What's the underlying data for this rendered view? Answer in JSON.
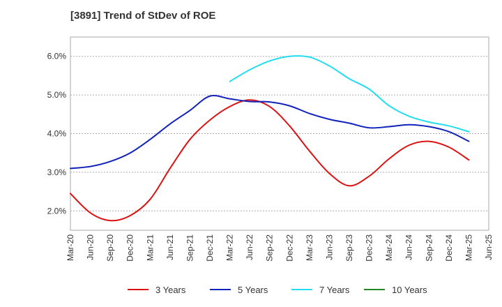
{
  "chart_data": {
    "type": "line",
    "title": "[3891]  Trend of StDev of ROE",
    "xlabel": "",
    "ylabel": "",
    "ylim": [
      1.5,
      6.5
    ],
    "y_ticks": [
      2.0,
      3.0,
      4.0,
      5.0,
      6.0
    ],
    "y_tick_labels": [
      "2.0%",
      "3.0%",
      "4.0%",
      "5.0%",
      "6.0%"
    ],
    "x_tick_labels": [
      "Mar-20",
      "Jun-20",
      "Sep-20",
      "Dec-20",
      "Mar-21",
      "Jun-21",
      "Sep-21",
      "Dec-21",
      "Mar-22",
      "Jun-22",
      "Sep-22",
      "Dec-22",
      "Mar-23",
      "Jun-23",
      "Sep-23",
      "Dec-23",
      "Mar-24",
      "Jun-24",
      "Sep-24",
      "Dec-24",
      "Mar-25",
      "Jun-25"
    ],
    "grid": "horizontal dashed",
    "legend_position": "bottom",
    "series": [
      {
        "name": "3 Years",
        "color": "#dd1111",
        "x": [
          "Mar-20",
          "Jun-20",
          "Sep-20",
          "Dec-20",
          "Mar-21",
          "Jun-21",
          "Sep-21",
          "Dec-21",
          "Mar-22",
          "Jun-22",
          "Sep-22",
          "Dec-22",
          "Mar-23",
          "Jun-23",
          "Sep-23",
          "Dec-23",
          "Mar-24",
          "Jun-24",
          "Sep-24",
          "Dec-24",
          "Mar-25"
        ],
        "values": [
          2.45,
          1.95,
          1.75,
          1.88,
          2.3,
          3.1,
          3.85,
          4.35,
          4.7,
          4.87,
          4.7,
          4.2,
          3.55,
          2.97,
          2.65,
          2.9,
          3.35,
          3.7,
          3.8,
          3.65,
          3.32
        ]
      },
      {
        "name": "5 Years",
        "color": "#1122bb",
        "x": [
          "Mar-20",
          "Jun-20",
          "Sep-20",
          "Dec-20",
          "Mar-21",
          "Jun-21",
          "Sep-21",
          "Dec-21",
          "Mar-22",
          "Jun-22",
          "Sep-22",
          "Dec-22",
          "Mar-23",
          "Jun-23",
          "Sep-23",
          "Dec-23",
          "Mar-24",
          "Jun-24",
          "Sep-24",
          "Dec-24",
          "Mar-25"
        ],
        "values": [
          3.1,
          3.15,
          3.28,
          3.5,
          3.85,
          4.25,
          4.6,
          4.97,
          4.9,
          4.83,
          4.82,
          4.72,
          4.52,
          4.37,
          4.27,
          4.15,
          4.18,
          4.23,
          4.18,
          4.05,
          3.8
        ]
      },
      {
        "name": "7 Years",
        "color": "#22ddee",
        "x": [
          "Mar-22",
          "Jun-22",
          "Sep-22",
          "Dec-22",
          "Mar-23",
          "Jun-23",
          "Sep-23",
          "Dec-23",
          "Mar-24",
          "Jun-24",
          "Sep-24",
          "Dec-24",
          "Mar-25"
        ],
        "values": [
          5.35,
          5.65,
          5.88,
          6.0,
          5.98,
          5.75,
          5.42,
          5.15,
          4.72,
          4.45,
          4.3,
          4.2,
          4.05
        ]
      },
      {
        "name": "10 Years",
        "color": "#228822",
        "x": [],
        "values": []
      }
    ]
  }
}
